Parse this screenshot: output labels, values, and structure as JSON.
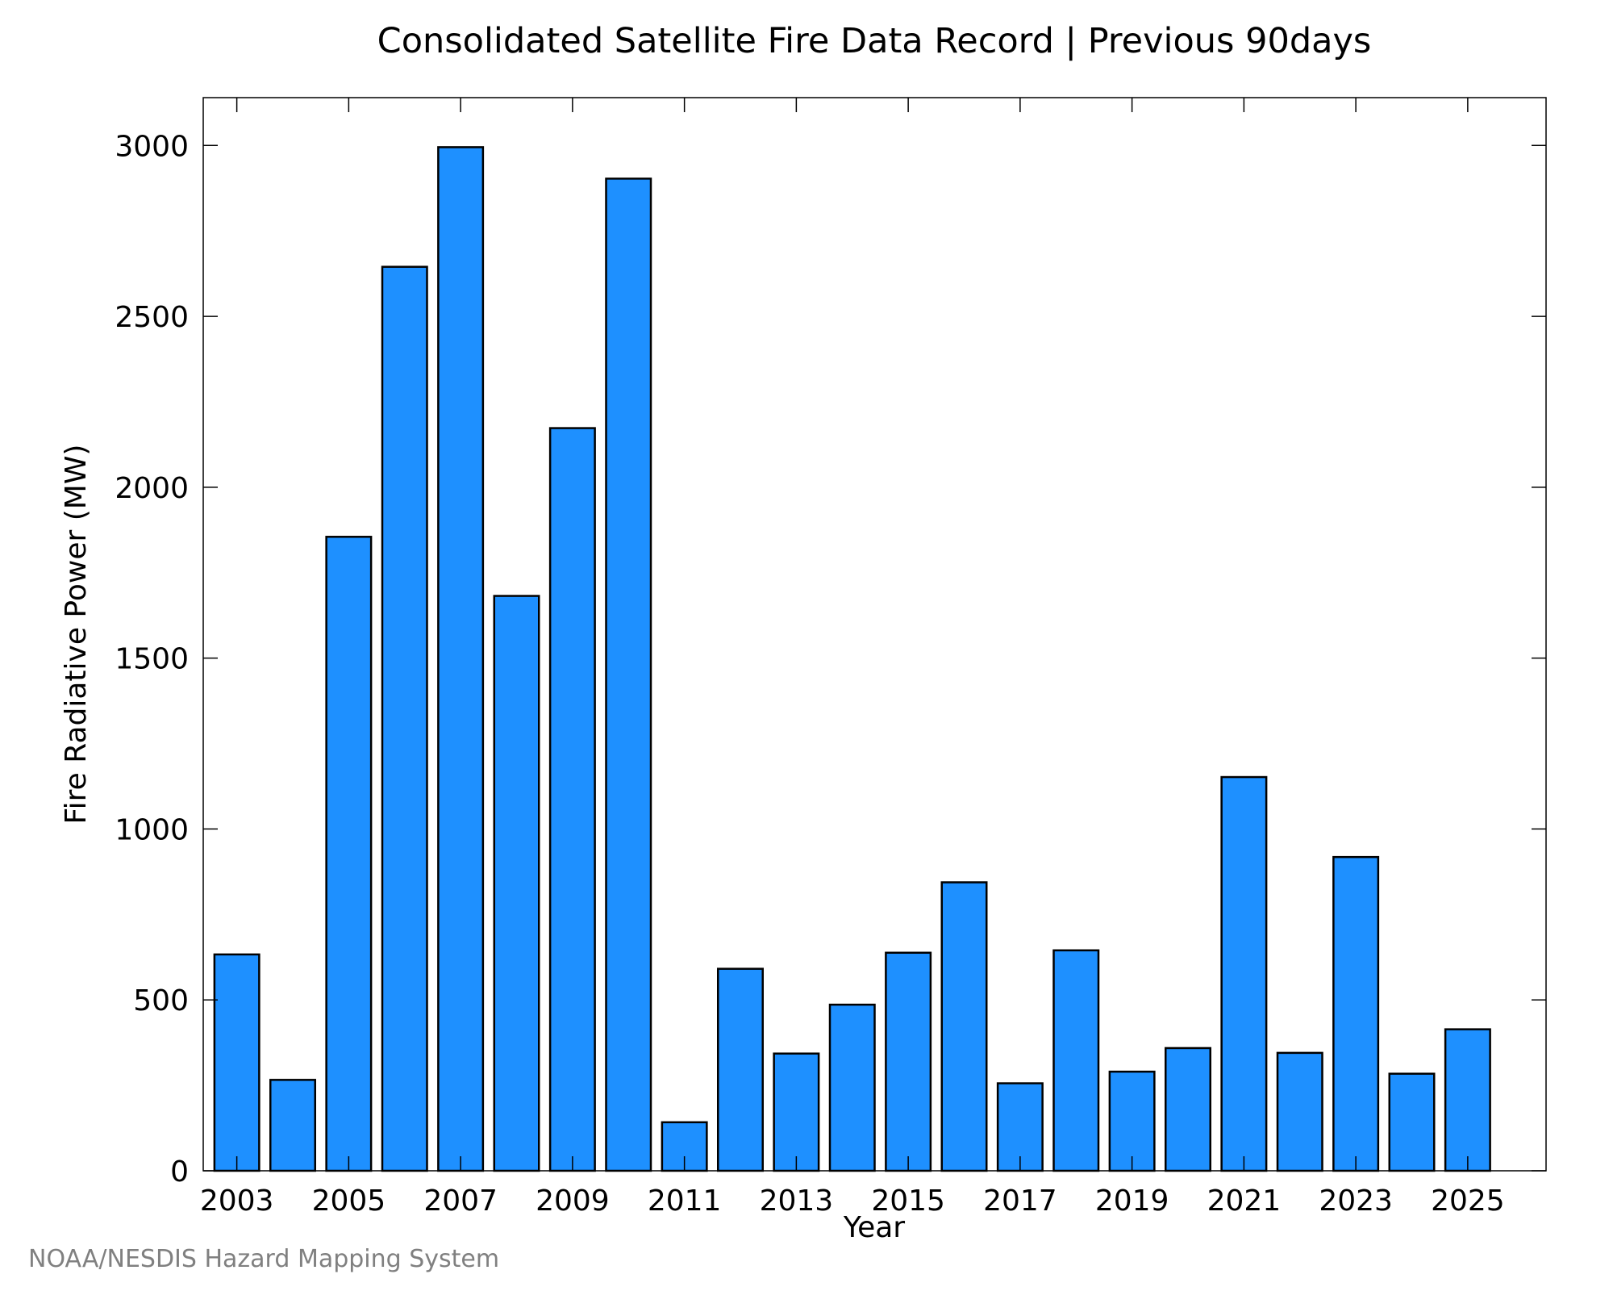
{
  "chart_data": {
    "type": "bar",
    "title": "Consolidated Satellite Fire Data Record | Previous 90days",
    "xlabel": "Year",
    "ylabel": "Fire Radiative Power (MW)",
    "categories": [
      2003,
      2004,
      2005,
      2006,
      2007,
      2008,
      2009,
      2010,
      2011,
      2012,
      2013,
      2014,
      2015,
      2016,
      2017,
      2018,
      2019,
      2020,
      2021,
      2022,
      2023,
      2024,
      2025
    ],
    "values": [
      633,
      266,
      1855,
      2645,
      2995,
      1682,
      2173,
      2903,
      142,
      591,
      343,
      486,
      638,
      844,
      256,
      645,
      290,
      359,
      1152,
      345,
      918,
      284,
      414
    ],
    "xticks": [
      "2003",
      "2005",
      "2007",
      "2009",
      "2011",
      "2013",
      "2015",
      "2017",
      "2019",
      "2021",
      "2023",
      "2025"
    ],
    "yticks": [
      "0",
      "500",
      "1000",
      "1500",
      "2000",
      "2500",
      "3000"
    ],
    "ylim": [
      0,
      3140
    ],
    "grid": false,
    "bar_color": "#1e90ff",
    "edge_color": "#000000"
  },
  "credit": "NOAA/NESDIS Hazard Mapping System"
}
